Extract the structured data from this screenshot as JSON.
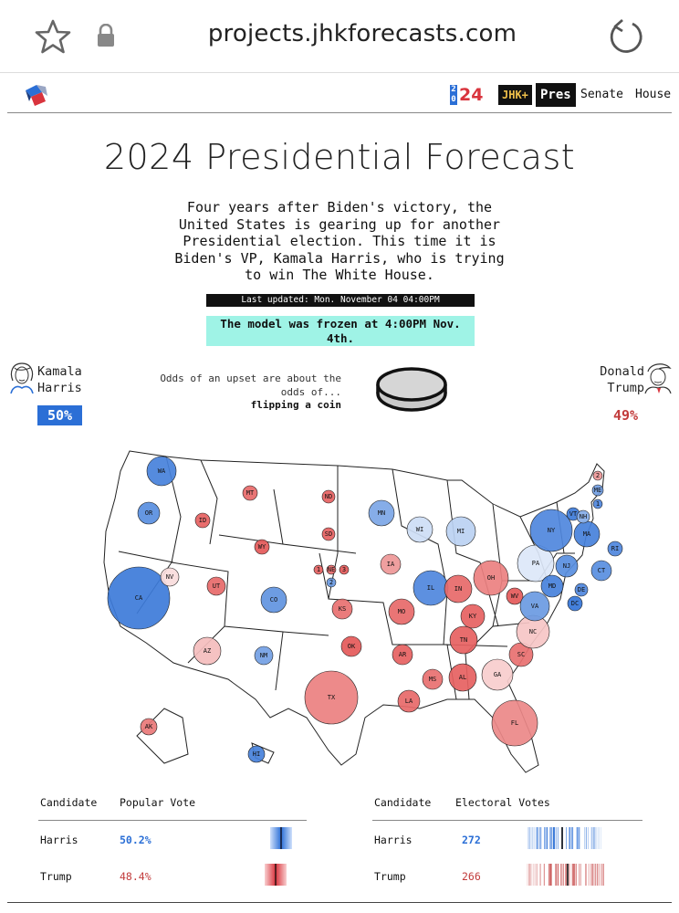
{
  "browser": {
    "url": "projects.jhkforecasts.com"
  },
  "nav": {
    "year_top": "2",
    "year_bottom": "0",
    "year_rest": "24",
    "jhk_plus": "JHK+",
    "pres": "Pres",
    "senate": "Senate",
    "house": "House"
  },
  "header": {
    "title": "2024 Presidential Forecast",
    "intro": "Four years after Biden's victory, the United States is gearing up for another Presidential election. This time it is Biden's VP, Kamala Harris, who is trying to win The White House.",
    "last_updated": "Last updated: Mon. November 04 04:00PM",
    "frozen_notice": "The model was frozen at 4:00PM Nov. 4th."
  },
  "candidates": {
    "harris": {
      "first": "Kamala",
      "last": "Harris",
      "odds": "50%",
      "color": "#2b6fd6"
    },
    "trump": {
      "first": "Donald",
      "last": "Trump",
      "odds": "49%",
      "color": "#c23b3b"
    }
  },
  "upset": {
    "text": "Odds of an upset are about the odds of...",
    "answer": "flipping a coin"
  },
  "map": {
    "states": [
      {
        "id": "WA",
        "lean": 0.85
      },
      {
        "id": "OR",
        "lean": 0.75
      },
      {
        "id": "CA",
        "lean": 0.9
      },
      {
        "id": "NV",
        "lean": -0.05
      },
      {
        "id": "ID",
        "lean": -0.85
      },
      {
        "id": "MT",
        "lean": -0.8
      },
      {
        "id": "WY",
        "lean": -0.9
      },
      {
        "id": "UT",
        "lean": -0.8
      },
      {
        "id": "AZ",
        "lean": -0.25
      },
      {
        "id": "CO",
        "lean": 0.7
      },
      {
        "id": "NM",
        "lean": 0.6
      },
      {
        "id": "ND",
        "lean": -0.85
      },
      {
        "id": "SD",
        "lean": -0.85
      },
      {
        "id": "NE",
        "lean": -0.8
      },
      {
        "id": "KS",
        "lean": -0.75
      },
      {
        "id": "OK",
        "lean": -0.9
      },
      {
        "id": "TX",
        "lean": -0.65
      },
      {
        "id": "MN",
        "lean": 0.55
      },
      {
        "id": "IA",
        "lean": -0.5
      },
      {
        "id": "MO",
        "lean": -0.8
      },
      {
        "id": "AR",
        "lean": -0.85
      },
      {
        "id": "LA",
        "lean": -0.8
      },
      {
        "id": "WI",
        "lean": 0.1
      },
      {
        "id": "IL",
        "lean": 0.8
      },
      {
        "id": "MI",
        "lean": 0.2
      },
      {
        "id": "IN",
        "lean": -0.8
      },
      {
        "id": "OH",
        "lean": -0.65
      },
      {
        "id": "KY",
        "lean": -0.85
      },
      {
        "id": "TN",
        "lean": -0.85
      },
      {
        "id": "MS",
        "lean": -0.75
      },
      {
        "id": "AL",
        "lean": -0.85
      },
      {
        "id": "GA",
        "lean": -0.15
      },
      {
        "id": "FL",
        "lean": -0.6
      },
      {
        "id": "SC",
        "lean": -0.75
      },
      {
        "id": "NC",
        "lean": -0.2
      },
      {
        "id": "WV",
        "lean": -0.9
      },
      {
        "id": "VA",
        "lean": 0.65
      },
      {
        "id": "PA",
        "lean": 0.02
      },
      {
        "id": "NY",
        "lean": 0.8
      },
      {
        "id": "MD",
        "lean": 0.85
      },
      {
        "id": "DE",
        "lean": 0.8
      },
      {
        "id": "NJ",
        "lean": 0.75
      },
      {
        "id": "CT",
        "lean": 0.75
      },
      {
        "id": "RI",
        "lean": 0.8
      },
      {
        "id": "MA",
        "lean": 0.85
      },
      {
        "id": "VT",
        "lean": 0.9
      },
      {
        "id": "NH",
        "lean": 0.5
      },
      {
        "id": "DC",
        "lean": 0.95
      },
      {
        "id": "AK",
        "lean": -0.7
      },
      {
        "id": "HI",
        "lean": 0.85
      },
      {
        "id": "1",
        "lean": -0.85
      },
      {
        "id": "3",
        "lean": -0.9
      },
      {
        "id": "2",
        "lean": 0.65
      },
      {
        "id": "ME-2",
        "label": "2",
        "lean": -0.5
      },
      {
        "id": "ME",
        "lean": 0.6
      },
      {
        "id": "ME-1",
        "label": "1",
        "lean": 0.8
      }
    ]
  },
  "popular_vote": {
    "header_candidate": "Candidate",
    "header_value": "Popular Vote",
    "rows": [
      {
        "name": "Harris",
        "value": "50.2%",
        "color": "#2b6fd6"
      },
      {
        "name": "Trump",
        "value": "48.4%",
        "color": "#c23b3b"
      }
    ]
  },
  "electoral_votes": {
    "header_candidate": "Candidate",
    "header_value": "Electoral Votes",
    "rows": [
      {
        "name": "Harris",
        "value": "272",
        "color": "#2b6fd6"
      },
      {
        "name": "Trump",
        "value": "266",
        "color": "#c23b3b"
      }
    ]
  }
}
